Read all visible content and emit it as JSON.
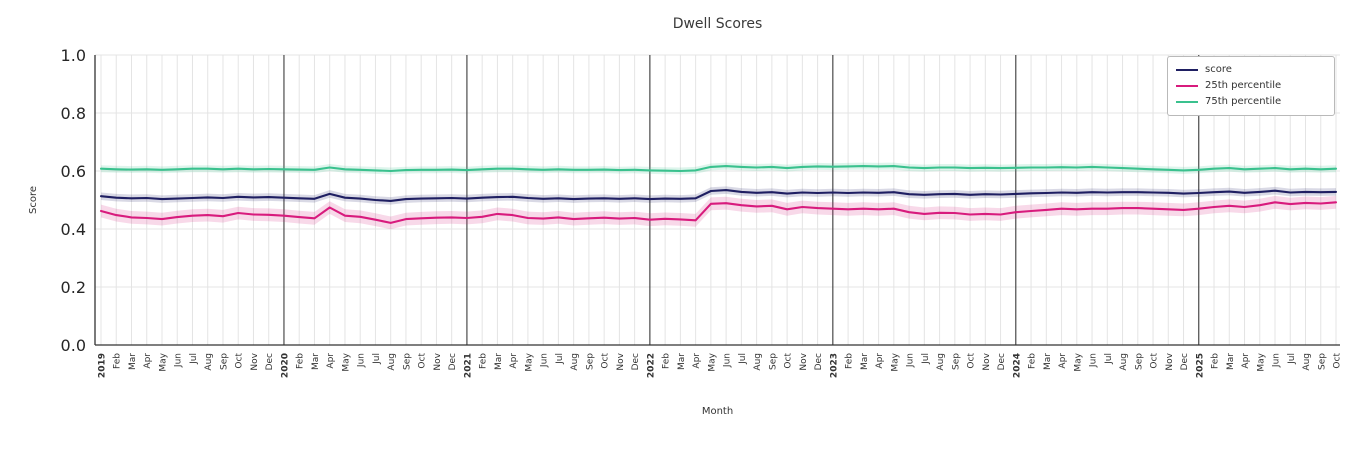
{
  "chart_data": {
    "type": "line",
    "title": "Dwell Scores",
    "xlabel": "Month",
    "ylabel": "Score",
    "ylim": [
      0.0,
      1.0
    ],
    "yticks": [
      0.0,
      0.2,
      0.4,
      0.6,
      0.8,
      1.0
    ],
    "grid": true,
    "legend_position": "upper right",
    "gridline_color": "#e4e4e4",
    "year_line_color": "#2b2b2b",
    "spine_color": "#333333",
    "x_labels": [
      "2019",
      "Feb",
      "Mar",
      "Apr",
      "May",
      "Jun",
      "Jul",
      "Aug",
      "Sep",
      "Oct",
      "Nov",
      "Dec",
      "2020",
      "Feb",
      "Mar",
      "Apr",
      "May",
      "Jun",
      "Jul",
      "Aug",
      "Sep",
      "Oct",
      "Nov",
      "Dec",
      "2021",
      "Feb",
      "Mar",
      "Apr",
      "May",
      "Jun",
      "Jul",
      "Aug",
      "Sep",
      "Oct",
      "Nov",
      "Dec",
      "2022",
      "Feb",
      "Mar",
      "Apr",
      "May",
      "Jun",
      "Jul",
      "Aug",
      "Sep",
      "Oct",
      "Nov",
      "Dec",
      "2023",
      "Feb",
      "Mar",
      "Apr",
      "May",
      "Jun",
      "Jul",
      "Aug",
      "Sep",
      "Oct",
      "Nov",
      "Dec",
      "2024",
      "Feb",
      "Mar",
      "Apr",
      "May",
      "Jun",
      "Jul",
      "Aug",
      "Sep",
      "Oct",
      "Nov",
      "Dec",
      "2025",
      "Feb",
      "Mar",
      "Apr",
      "May",
      "Jun",
      "Jul",
      "Aug",
      "Sep",
      "Oct"
    ],
    "series": [
      {
        "name": "score",
        "color": "#1f1f62",
        "band_halfwidth": 0.013,
        "values": [
          0.513,
          0.508,
          0.506,
          0.507,
          0.503,
          0.505,
          0.507,
          0.509,
          0.507,
          0.511,
          0.509,
          0.51,
          0.508,
          0.506,
          0.504,
          0.521,
          0.508,
          0.505,
          0.5,
          0.497,
          0.503,
          0.505,
          0.506,
          0.507,
          0.505,
          0.508,
          0.51,
          0.511,
          0.507,
          0.504,
          0.506,
          0.503,
          0.505,
          0.506,
          0.504,
          0.506,
          0.503,
          0.505,
          0.504,
          0.506,
          0.531,
          0.534,
          0.528,
          0.525,
          0.527,
          0.522,
          0.526,
          0.524,
          0.526,
          0.524,
          0.526,
          0.525,
          0.527,
          0.52,
          0.518,
          0.52,
          0.521,
          0.518,
          0.52,
          0.519,
          0.521,
          0.523,
          0.524,
          0.526,
          0.525,
          0.527,
          0.526,
          0.527,
          0.527,
          0.526,
          0.525,
          0.522,
          0.524,
          0.527,
          0.529,
          0.525,
          0.528,
          0.532,
          0.526,
          0.528,
          0.527,
          0.528
        ]
      },
      {
        "name": "25th percentile",
        "color": "#d81b7d",
        "band_halfwidth": 0.022,
        "values": [
          0.462,
          0.448,
          0.44,
          0.438,
          0.434,
          0.441,
          0.446,
          0.448,
          0.444,
          0.455,
          0.45,
          0.449,
          0.446,
          0.441,
          0.437,
          0.474,
          0.446,
          0.442,
          0.432,
          0.421,
          0.434,
          0.437,
          0.439,
          0.44,
          0.438,
          0.442,
          0.452,
          0.448,
          0.438,
          0.436,
          0.44,
          0.434,
          0.437,
          0.439,
          0.436,
          0.438,
          0.432,
          0.435,
          0.433,
          0.43,
          0.487,
          0.489,
          0.482,
          0.478,
          0.48,
          0.468,
          0.476,
          0.472,
          0.47,
          0.468,
          0.47,
          0.468,
          0.47,
          0.458,
          0.452,
          0.456,
          0.455,
          0.45,
          0.452,
          0.45,
          0.458,
          0.462,
          0.466,
          0.47,
          0.468,
          0.47,
          0.47,
          0.472,
          0.472,
          0.47,
          0.468,
          0.466,
          0.47,
          0.476,
          0.48,
          0.476,
          0.482,
          0.492,
          0.486,
          0.49,
          0.488,
          0.492
        ]
      },
      {
        "name": "75th percentile",
        "color": "#3ac18e",
        "band_halfwidth": 0.012,
        "values": [
          0.608,
          0.606,
          0.605,
          0.606,
          0.604,
          0.606,
          0.608,
          0.608,
          0.606,
          0.608,
          0.606,
          0.607,
          0.606,
          0.605,
          0.604,
          0.612,
          0.606,
          0.604,
          0.602,
          0.6,
          0.603,
          0.604,
          0.604,
          0.605,
          0.603,
          0.606,
          0.608,
          0.608,
          0.606,
          0.604,
          0.606,
          0.604,
          0.604,
          0.605,
          0.603,
          0.604,
          0.602,
          0.601,
          0.6,
          0.602,
          0.614,
          0.617,
          0.614,
          0.612,
          0.614,
          0.61,
          0.614,
          0.616,
          0.615,
          0.616,
          0.617,
          0.616,
          0.617,
          0.612,
          0.61,
          0.612,
          0.612,
          0.61,
          0.611,
          0.61,
          0.611,
          0.612,
          0.612,
          0.613,
          0.612,
          0.614,
          0.612,
          0.61,
          0.608,
          0.606,
          0.604,
          0.602,
          0.604,
          0.608,
          0.61,
          0.606,
          0.608,
          0.61,
          0.606,
          0.608,
          0.606,
          0.608
        ]
      }
    ]
  }
}
